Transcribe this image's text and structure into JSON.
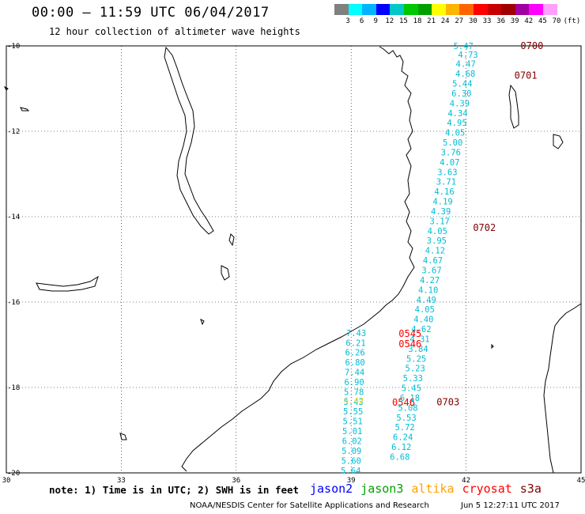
{
  "header": {
    "title": "00:00 – 11:59 UTC 06/04/2017",
    "subtitle": "12 hour collection of altimeter wave heights"
  },
  "colorbar": {
    "colors": [
      "#808080",
      "#00ffff",
      "#00b4ff",
      "#0000ff",
      "#00c8c8",
      "#00c800",
      "#00a000",
      "#ffff00",
      "#ffb400",
      "#ff6400",
      "#ff0000",
      "#c80000",
      "#a00000",
      "#a000a0",
      "#ff00ff",
      "#ffa0ff"
    ],
    "labels": [
      "3",
      "6",
      "9",
      "12",
      "15",
      "18",
      "21",
      "24",
      "27",
      "30",
      "33",
      "36",
      "39",
      "42",
      "45",
      "70",
      "(ft)"
    ]
  },
  "axes": {
    "x_ticks": [
      {
        "value": 30,
        "label": "30"
      },
      {
        "value": 33,
        "label": "33"
      },
      {
        "value": 36,
        "label": "36"
      },
      {
        "value": 39,
        "label": "39"
      },
      {
        "value": 42,
        "label": "42"
      },
      {
        "value": 45,
        "label": "45"
      }
    ],
    "y_ticks": [
      {
        "value": -10,
        "label": "-10"
      },
      {
        "value": -12,
        "label": "-12"
      },
      {
        "value": -14,
        "label": "-14"
      },
      {
        "value": -16,
        "label": "-16"
      },
      {
        "value": -18,
        "label": "-18"
      },
      {
        "value": -20,
        "label": "-20"
      }
    ],
    "lon_range": [
      30,
      45
    ],
    "lat_range": [
      -20,
      -10
    ]
  },
  "tracks": [
    {
      "color": "#00bcd4",
      "points": [
        {
          "lon": 41.67,
          "lat": -10.0,
          "swh": "5.47"
        },
        {
          "lon": 41.79,
          "lat": -10.2,
          "swh": "4.73"
        },
        {
          "lon": 41.73,
          "lat": -10.42,
          "swh": "4.47"
        },
        {
          "lon": 41.72,
          "lat": -10.65,
          "swh": "4.68"
        },
        {
          "lon": 41.64,
          "lat": -10.88,
          "swh": "5.44"
        },
        {
          "lon": 41.62,
          "lat": -11.11,
          "swh": "6.30"
        },
        {
          "lon": 41.57,
          "lat": -11.34,
          "swh": "4.39"
        },
        {
          "lon": 41.52,
          "lat": -11.57,
          "swh": "4.34"
        },
        {
          "lon": 41.5,
          "lat": -11.8,
          "swh": "4.95"
        },
        {
          "lon": 41.45,
          "lat": -12.03,
          "swh": "4.05"
        },
        {
          "lon": 41.39,
          "lat": -12.26,
          "swh": "5.00"
        },
        {
          "lon": 41.34,
          "lat": -12.49,
          "swh": "3.76"
        },
        {
          "lon": 41.31,
          "lat": -12.72,
          "swh": "4.07"
        },
        {
          "lon": 41.25,
          "lat": -12.95,
          "swh": "3.63"
        },
        {
          "lon": 41.22,
          "lat": -13.18,
          "swh": "3.71"
        },
        {
          "lon": 41.17,
          "lat": -13.41,
          "swh": "4.16"
        },
        {
          "lon": 41.13,
          "lat": -13.64,
          "swh": "4.19"
        },
        {
          "lon": 41.08,
          "lat": -13.87,
          "swh": "4.39"
        },
        {
          "lon": 41.05,
          "lat": -14.1,
          "swh": "3.17"
        },
        {
          "lon": 40.99,
          "lat": -14.33,
          "swh": "4.05"
        },
        {
          "lon": 40.97,
          "lat": -14.56,
          "swh": "3.95"
        },
        {
          "lon": 40.93,
          "lat": -14.79,
          "swh": "4.12"
        },
        {
          "lon": 40.87,
          "lat": -15.02,
          "swh": "4.67"
        },
        {
          "lon": 40.84,
          "lat": -15.25,
          "swh": "3.67"
        },
        {
          "lon": 40.79,
          "lat": -15.48,
          "swh": "4.27"
        },
        {
          "lon": 40.75,
          "lat": -15.71,
          "swh": "4.10"
        },
        {
          "lon": 40.7,
          "lat": -15.94,
          "swh": "4.49"
        },
        {
          "lon": 40.66,
          "lat": -16.17,
          "swh": "4.05"
        },
        {
          "lon": 40.63,
          "lat": -16.4,
          "swh": "4.40"
        },
        {
          "lon": 40.57,
          "lat": -16.63,
          "swh": "4.62"
        },
        {
          "lon": 40.53,
          "lat": -16.86,
          "swh": "4.31"
        },
        {
          "lon": 40.49,
          "lat": -17.09,
          "swh": "3.84"
        },
        {
          "lon": 40.44,
          "lat": -17.32,
          "swh": "5.25"
        },
        {
          "lon": 40.41,
          "lat": -17.55,
          "swh": "5.23"
        },
        {
          "lon": 40.35,
          "lat": -17.78,
          "swh": "5.33"
        },
        {
          "lon": 40.31,
          "lat": -18.01,
          "swh": "5.45"
        },
        {
          "lon": 40.27,
          "lat": -18.24,
          "swh": "6.18"
        },
        {
          "lon": 40.22,
          "lat": -18.47,
          "swh": "5.08"
        },
        {
          "lon": 40.18,
          "lat": -18.7,
          "swh": "5.53"
        },
        {
          "lon": 40.14,
          "lat": -18.93,
          "swh": "5.72"
        },
        {
          "lon": 40.09,
          "lat": -19.16,
          "swh": "6.24"
        },
        {
          "lon": 40.05,
          "lat": -19.39,
          "swh": "6.12"
        },
        {
          "lon": 40.01,
          "lat": -19.62,
          "swh": "6.68"
        }
      ]
    },
    {
      "color": "#00bcd4",
      "points": [
        {
          "lon": 38.87,
          "lat": -16.72,
          "swh": "7.43"
        },
        {
          "lon": 38.86,
          "lat": -16.95,
          "swh": "6.21"
        },
        {
          "lon": 38.84,
          "lat": -17.18,
          "swh": "6.26"
        },
        {
          "lon": 38.84,
          "lat": -17.41,
          "swh": "6.80"
        },
        {
          "lon": 38.83,
          "lat": -17.64,
          "swh": "7.44"
        },
        {
          "lon": 38.82,
          "lat": -17.87,
          "swh": "6.90"
        },
        {
          "lon": 38.81,
          "lat": -18.1,
          "swh": "5.78"
        },
        {
          "lon": 38.8,
          "lat": -18.33,
          "swh": "5.43"
        },
        {
          "lon": 38.79,
          "lat": -18.56,
          "swh": "5.55"
        },
        {
          "lon": 38.78,
          "lat": -18.79,
          "swh": "5.51"
        },
        {
          "lon": 38.77,
          "lat": -19.02,
          "swh": "5.01"
        },
        {
          "lon": 38.76,
          "lat": -19.25,
          "swh": "6.02"
        },
        {
          "lon": 38.75,
          "lat": -19.48,
          "swh": "5.09"
        },
        {
          "lon": 38.74,
          "lat": -19.71,
          "swh": "5.60"
        },
        {
          "lon": 38.73,
          "lat": -19.94,
          "swh": "5.64"
        }
      ]
    },
    {
      "color": "#f0e020",
      "points": [
        {
          "lon": 38.81,
          "lat": -18.31,
          "swh": "5.42"
        }
      ]
    }
  ],
  "time_labels": [
    {
      "lon": 43.42,
      "lat": -10.0,
      "text": "0700",
      "color": "#800000"
    },
    {
      "lon": 43.26,
      "lat": -10.69,
      "text": "0701",
      "color": "#800000"
    },
    {
      "lon": 42.18,
      "lat": -14.26,
      "text": "0702",
      "color": "#800000"
    },
    {
      "lon": 41.23,
      "lat": -18.34,
      "text": "0703",
      "color": "#800000"
    },
    {
      "lon": 40.24,
      "lat": -16.74,
      "text": "0545",
      "color": "#ff0000"
    },
    {
      "lon": 40.24,
      "lat": -16.98,
      "text": "0546",
      "color": "#ff0000"
    },
    {
      "lon": 40.07,
      "lat": -18.35,
      "text": "0546",
      "color": "#ff0000"
    }
  ],
  "footer": {
    "note": "note: 1) Time is in UTC; 2) SWH is in feet",
    "credit": "NOAA/NESDIS Center for Satellite Applications and Research",
    "timestamp": "Jun  5 12:27:11 UTC 2017"
  },
  "legend": [
    {
      "label": "jason2",
      "color": "#0000ff"
    },
    {
      "label": "jason3",
      "color": "#00a000"
    },
    {
      "label": "altika",
      "color": "#ffa000"
    },
    {
      "label": "cryosat",
      "color": "#ff0000"
    },
    {
      "label": "s3a",
      "color": "#800000"
    }
  ]
}
